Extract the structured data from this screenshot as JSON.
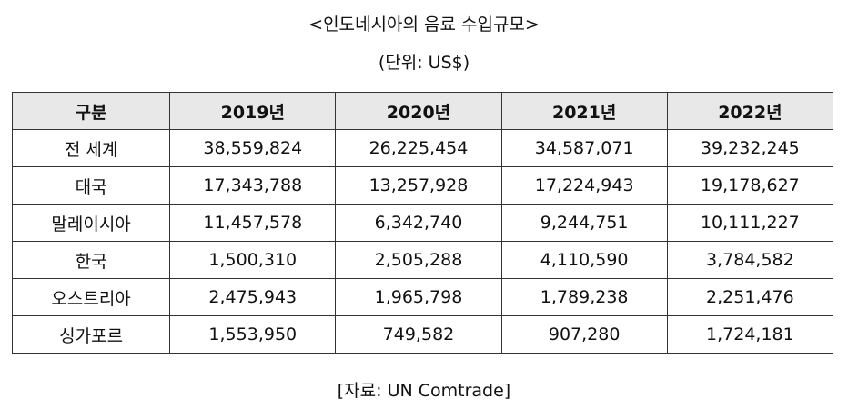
{
  "title": "<인도네시아의 음료 수입규모>",
  "unit": "(단위: US$)",
  "table": {
    "headers": [
      "구분",
      "2019년",
      "2020년",
      "2021년",
      "2022년"
    ],
    "rows": [
      {
        "label": "전 세계",
        "values": [
          "38,559,824",
          "26,225,454",
          "34,587,071",
          "39,232,245"
        ]
      },
      {
        "label": "태국",
        "values": [
          "17,343,788",
          "13,257,928",
          "17,224,943",
          "19,178,627"
        ]
      },
      {
        "label": "말레이시아",
        "values": [
          "11,457,578",
          "6,342,740",
          "9,244,751",
          "10,111,227"
        ]
      },
      {
        "label": "한국",
        "values": [
          "1,500,310",
          "2,505,288",
          "4,110,590",
          "3,784,582"
        ]
      },
      {
        "label": "오스트리아",
        "values": [
          "2,475,943",
          "1,965,798",
          "1,789,238",
          "2,251,476"
        ]
      },
      {
        "label": "싱가포르",
        "values": [
          "1,553,950",
          "749,582",
          "907,280",
          "1,724,181"
        ]
      }
    ]
  },
  "source": "[자료: UN Comtrade]"
}
